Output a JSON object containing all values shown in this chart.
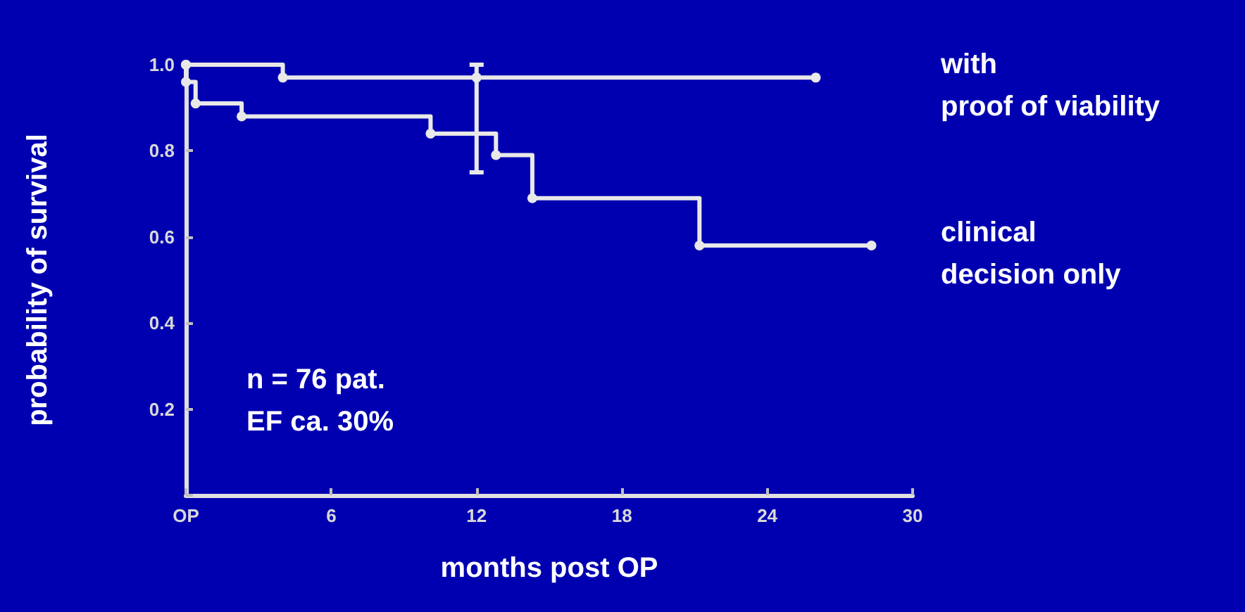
{
  "chart_data": {
    "type": "step",
    "xlabel": "months post OP",
    "ylabel": "probability of survival",
    "annotations": [
      "n = 76 pat.\nEF ca. 30%"
    ],
    "xlim": [
      0,
      30
    ],
    "xticks": [
      {
        "value": 0,
        "label": "OP"
      },
      6,
      12,
      18,
      24,
      30
    ],
    "ylim": [
      0,
      1
    ],
    "yticks": [
      {
        "value": 0,
        "label": null
      },
      0.2,
      0.4,
      0.6,
      0.8,
      {
        "value": 1,
        "label": "1.0"
      }
    ],
    "marker": "circle",
    "grid": false,
    "series": [
      {
        "name": "with\nproof of viability",
        "color": "#e8e8e8",
        "x": [
          0,
          4,
          12,
          26
        ],
        "values": [
          1,
          0.97,
          0.97,
          0.97
        ],
        "errors": [
          null,
          null,
          [
            0.75,
            1.0
          ],
          null
        ]
      },
      {
        "name": "clinical\ndecision only",
        "color": "#e8e8e8",
        "x": [
          0,
          0,
          0.4,
          2.3,
          10.1,
          12.8,
          14.3,
          21.2,
          28.3
        ],
        "values": [
          1,
          0.96,
          0.91,
          0.88,
          0.84,
          0.79,
          0.69,
          0.58,
          0.58
        ]
      }
    ]
  }
}
